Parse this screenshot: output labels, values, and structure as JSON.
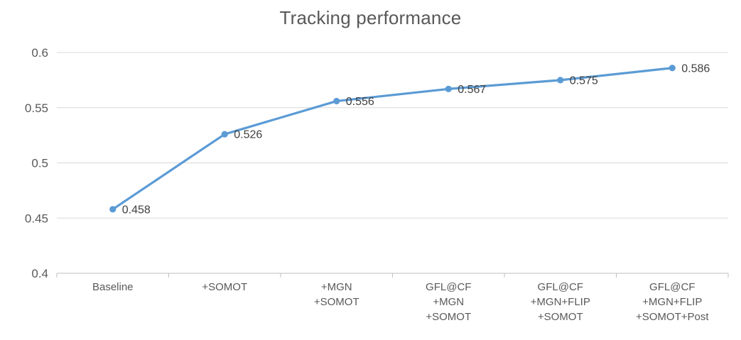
{
  "title": "Tracking performance",
  "chart_data": {
    "type": "line",
    "title": "Tracking performance",
    "categories": [
      "Baseline",
      "+SOMOT",
      "+MGN\n+SOMOT",
      "GFL@CF\n+MGN\n+SOMOT",
      "GFL@CF\n+MGN+FLIP\n+SOMOT",
      "GFL@CF\n+MGN+FLIP\n+SOMOT+Post"
    ],
    "values": [
      0.458,
      0.526,
      0.556,
      0.567,
      0.575,
      0.586
    ],
    "data_labels": [
      "0.458",
      "0.526",
      "0.556",
      "0.567",
      "0.575",
      "0.586"
    ],
    "y_ticks": [
      0.4,
      0.45,
      0.5,
      0.55,
      0.6
    ],
    "y_tick_labels": [
      "0.4",
      "0.45",
      "0.5",
      "0.55",
      "0.6"
    ],
    "ylim": [
      0.4,
      0.6
    ],
    "xlabel": "",
    "ylabel": "",
    "grid": "horizontal",
    "legend": "none",
    "marker": "circle",
    "colors": {
      "line": "#5B9BD5",
      "marker": "#5B9BD5",
      "gridline": "#D9D9D9",
      "axis_line": "#BFBFBF",
      "tick_label": "#595959",
      "category_label": "#595959",
      "data_label": "#404040",
      "title": "#595959",
      "background": "#FFFFFF"
    }
  }
}
